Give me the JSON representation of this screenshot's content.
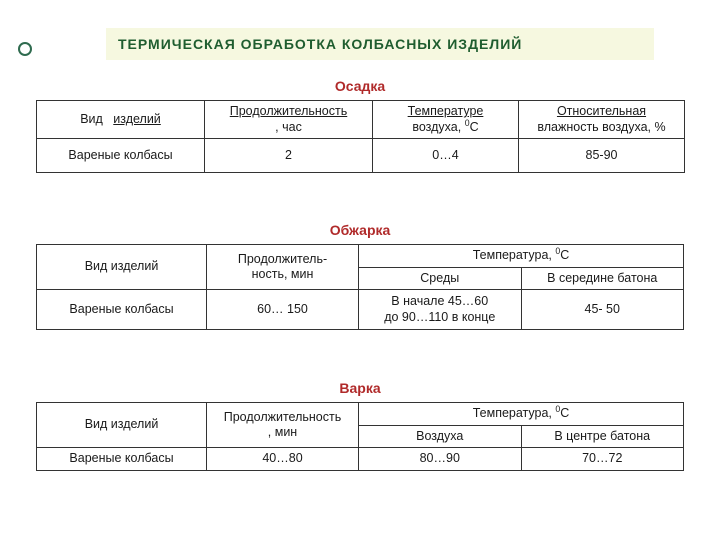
{
  "colors": {
    "title_bg": "#f6f8e0",
    "title_text": "#1f5d2f",
    "bullet_border": "#2f6b4f",
    "section_text": "#b02a2a",
    "border": "#333333",
    "background": "#ffffff"
  },
  "title": "ТЕРМИЧЕСКАЯ   ОБРАБОТКА    КОЛБАСНЫХ   ИЗДЕЛИЙ",
  "sections": {
    "osadka": {
      "heading": "Осадка",
      "columns": {
        "c1": "Вид",
        "c1u": "изделий",
        "c2a": "Продолжительность",
        "c2b": ",  час",
        "c3a": "Температуре",
        "c3b_pre": "воздуха, ",
        "c3b_sup": "0",
        "c3b_post": "С",
        "c4a": "Относительная",
        "c4b": "влажность    воздуха, %"
      },
      "rows": [
        {
          "c1": "Вареные   колбасы",
          "c2": "2",
          "c3": "0…4",
          "c4": "85-90"
        }
      ]
    },
    "objarka": {
      "heading": "Обжарка",
      "columns": {
        "c1": "Вид  изделий",
        "c2a": "Продолжитель-",
        "c2b": "ность,    мин",
        "c34_pre": "Температура,   ",
        "c34_sup": "0",
        "c34_post": "С",
        "c3": "Среды",
        "c4": "В середине батона"
      },
      "rows": [
        {
          "c1": "Вареные   колбасы",
          "c2": "60… 150",
          "c3a": "В  начале  45…60",
          "c3b": "до  90…110   в   конце",
          "c4": "45- 50"
        }
      ]
    },
    "varka": {
      "heading": "Варка",
      "columns": {
        "c1": "Вид   изделий",
        "c2a": "Продолжительность",
        "c2b": ",  мин",
        "c34_pre": "Температура,   ",
        "c34_sup": "0",
        "c34_post": "С",
        "c3": "Воздуха",
        "c4": "В  центре  батона"
      },
      "rows": [
        {
          "c1": "Вареные   колбасы",
          "c2": "40…80",
          "c3": "80…90",
          "c4": "70…72"
        }
      ]
    }
  }
}
